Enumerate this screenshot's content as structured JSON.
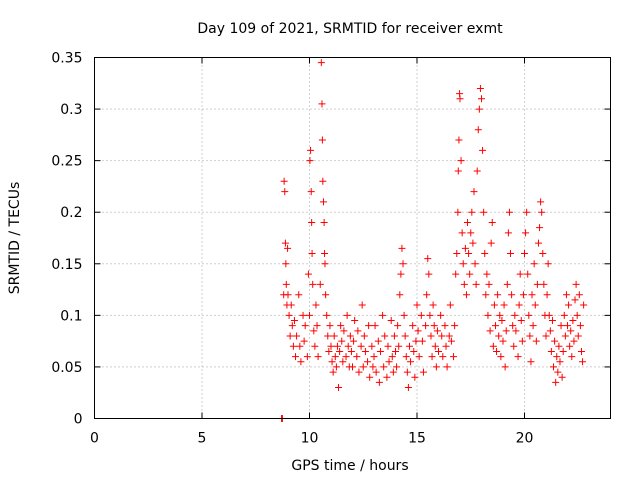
{
  "chart_data": {
    "type": "scatter",
    "title": "Day 109 of 2021, SRMTID for receiver exmt",
    "xlabel": "GPS time / hours",
    "ylabel": "SRMTID / TECUs",
    "xlim": [
      0,
      24
    ],
    "ylim": [
      0,
      0.35
    ],
    "xticks": [
      0,
      5,
      10,
      15,
      20
    ],
    "xtick_labels": [
      "0",
      "5",
      "10",
      "15",
      "20"
    ],
    "yticks": [
      0,
      0.05,
      0.1,
      0.15,
      0.2,
      0.25,
      0.3,
      0.35
    ],
    "ytick_labels": [
      "0",
      "0.05",
      "0.1",
      "0.15",
      "0.2",
      "0.25",
      "0.3",
      "0.35"
    ],
    "grid": true,
    "marker": "plus",
    "color": "#ff0000",
    "series": [
      {
        "name": "SRMTID",
        "points": [
          [
            8.7,
            0.0
          ],
          [
            8.72,
            0.0
          ],
          [
            8.74,
            0.0
          ],
          [
            8.8,
            0.12
          ],
          [
            8.82,
            0.23
          ],
          [
            8.85,
            0.22
          ],
          [
            8.88,
            0.17
          ],
          [
            8.9,
            0.15
          ],
          [
            8.92,
            0.13
          ],
          [
            8.95,
            0.11
          ],
          [
            8.98,
            0.165
          ],
          [
            9.0,
            0.12
          ],
          [
            9.05,
            0.1
          ],
          [
            9.1,
            0.08
          ],
          [
            9.15,
            0.11
          ],
          [
            9.2,
            0.09
          ],
          [
            9.25,
            0.07
          ],
          [
            9.3,
            0.095
          ],
          [
            9.35,
            0.06
          ],
          [
            9.4,
            0.08
          ],
          [
            9.5,
            0.12
          ],
          [
            9.55,
            0.07
          ],
          [
            9.6,
            0.055
          ],
          [
            9.7,
            0.1
          ],
          [
            9.75,
            0.075
          ],
          [
            9.8,
            0.09
          ],
          [
            9.9,
            0.06
          ],
          [
            9.95,
            0.14
          ],
          [
            10.0,
            0.1
          ],
          [
            10.02,
            0.25
          ],
          [
            10.05,
            0.26
          ],
          [
            10.08,
            0.22
          ],
          [
            10.1,
            0.19
          ],
          [
            10.12,
            0.16
          ],
          [
            10.15,
            0.13
          ],
          [
            10.2,
            0.085
          ],
          [
            10.25,
            0.07
          ],
          [
            10.3,
            0.11
          ],
          [
            10.35,
            0.09
          ],
          [
            10.4,
            0.06
          ],
          [
            10.5,
            0.13
          ],
          [
            10.55,
            0.345
          ],
          [
            10.58,
            0.305
          ],
          [
            10.6,
            0.27
          ],
          [
            10.62,
            0.23
          ],
          [
            10.65,
            0.21
          ],
          [
            10.68,
            0.19
          ],
          [
            10.7,
            0.16
          ],
          [
            10.72,
            0.15
          ],
          [
            10.75,
            0.12
          ],
          [
            10.8,
            0.1
          ],
          [
            10.85,
            0.08
          ],
          [
            10.9,
            0.065
          ],
          [
            10.95,
            0.09
          ],
          [
            11.0,
            0.07
          ],
          [
            11.05,
            0.055
          ],
          [
            11.1,
            0.045
          ],
          [
            11.15,
            0.08
          ],
          [
            11.2,
            0.06
          ],
          [
            11.25,
            0.05
          ],
          [
            11.3,
            0.07
          ],
          [
            11.35,
            0.03
          ],
          [
            11.4,
            0.065
          ],
          [
            11.45,
            0.09
          ],
          [
            11.5,
            0.075
          ],
          [
            11.55,
            0.055
          ],
          [
            11.6,
            0.085
          ],
          [
            11.7,
            0.06
          ],
          [
            11.75,
            0.1
          ],
          [
            11.8,
            0.07
          ],
          [
            11.85,
            0.05
          ],
          [
            11.9,
            0.08
          ],
          [
            11.95,
            0.065
          ],
          [
            12.0,
            0.05
          ],
          [
            12.05,
            0.075
          ],
          [
            12.1,
            0.095
          ],
          [
            12.2,
            0.06
          ],
          [
            12.25,
            0.085
          ],
          [
            12.3,
            0.045
          ],
          [
            12.4,
            0.07
          ],
          [
            12.45,
            0.11
          ],
          [
            12.5,
            0.05
          ],
          [
            12.55,
            0.08
          ],
          [
            12.6,
            0.065
          ],
          [
            12.7,
            0.055
          ],
          [
            12.75,
            0.09
          ],
          [
            12.8,
            0.04
          ],
          [
            12.9,
            0.07
          ],
          [
            12.95,
            0.05
          ],
          [
            13.0,
            0.06
          ],
          [
            13.05,
            0.09
          ],
          [
            13.1,
            0.045
          ],
          [
            13.2,
            0.075
          ],
          [
            13.25,
            0.035
          ],
          [
            13.3,
            0.065
          ],
          [
            13.4,
            0.1
          ],
          [
            13.45,
            0.05
          ],
          [
            13.5,
            0.08
          ],
          [
            13.6,
            0.04
          ],
          [
            13.65,
            0.07
          ],
          [
            13.7,
            0.055
          ],
          [
            13.8,
            0.095
          ],
          [
            13.85,
            0.06
          ],
          [
            13.9,
            0.045
          ],
          [
            13.95,
            0.08
          ],
          [
            14.0,
            0.065
          ],
          [
            14.05,
            0.05
          ],
          [
            14.1,
            0.09
          ],
          [
            14.15,
            0.07
          ],
          [
            14.2,
            0.12
          ],
          [
            14.25,
            0.14
          ],
          [
            14.3,
            0.165
          ],
          [
            14.35,
            0.15
          ],
          [
            14.4,
            0.1
          ],
          [
            14.45,
            0.08
          ],
          [
            14.5,
            0.06
          ],
          [
            14.55,
            0.045
          ],
          [
            14.6,
            0.03
          ],
          [
            14.65,
            0.07
          ],
          [
            14.7,
            0.055
          ],
          [
            14.8,
            0.09
          ],
          [
            14.85,
            0.065
          ],
          [
            14.9,
            0.04
          ],
          [
            14.95,
            0.075
          ],
          [
            15.0,
            0.11
          ],
          [
            15.05,
            0.085
          ],
          [
            15.1,
            0.06
          ],
          [
            15.2,
            0.1
          ],
          [
            15.25,
            0.075
          ],
          [
            15.3,
            0.045
          ],
          [
            15.4,
            0.09
          ],
          [
            15.45,
            0.12
          ],
          [
            15.5,
            0.155
          ],
          [
            15.55,
            0.14
          ],
          [
            15.6,
            0.1
          ],
          [
            15.65,
            0.08
          ],
          [
            15.7,
            0.06
          ],
          [
            15.75,
            0.11
          ],
          [
            15.8,
            0.09
          ],
          [
            15.85,
            0.07
          ],
          [
            15.9,
            0.05
          ],
          [
            15.95,
            0.085
          ],
          [
            16.0,
            0.065
          ],
          [
            16.1,
            0.1
          ],
          [
            16.15,
            0.08
          ],
          [
            16.2,
            0.06
          ],
          [
            16.3,
            0.09
          ],
          [
            16.35,
            0.07
          ],
          [
            16.4,
            0.05
          ],
          [
            16.5,
            0.08
          ],
          [
            16.55,
            0.11
          ],
          [
            16.6,
            0.075
          ],
          [
            16.7,
            0.06
          ],
          [
            16.75,
            0.09
          ],
          [
            16.8,
            0.14
          ],
          [
            16.85,
            0.16
          ],
          [
            16.9,
            0.2
          ],
          [
            16.92,
            0.24
          ],
          [
            16.95,
            0.27
          ],
          [
            16.98,
            0.315
          ],
          [
            17.0,
            0.31
          ],
          [
            17.05,
            0.25
          ],
          [
            17.1,
            0.18
          ],
          [
            17.15,
            0.15
          ],
          [
            17.2,
            0.13
          ],
          [
            17.25,
            0.165
          ],
          [
            17.3,
            0.12
          ],
          [
            17.35,
            0.19
          ],
          [
            17.4,
            0.16
          ],
          [
            17.45,
            0.14
          ],
          [
            17.5,
            0.18
          ],
          [
            17.55,
            0.2
          ],
          [
            17.6,
            0.17
          ],
          [
            17.65,
            0.22
          ],
          [
            17.7,
            0.15
          ],
          [
            17.75,
            0.13
          ],
          [
            17.8,
            0.24
          ],
          [
            17.85,
            0.28
          ],
          [
            17.9,
            0.3
          ],
          [
            17.95,
            0.32
          ],
          [
            18.0,
            0.31
          ],
          [
            18.05,
            0.26
          ],
          [
            18.1,
            0.2
          ],
          [
            18.15,
            0.16
          ],
          [
            18.2,
            0.12
          ],
          [
            18.25,
            0.14
          ],
          [
            18.3,
            0.1
          ],
          [
            18.35,
            0.13
          ],
          [
            18.4,
            0.085
          ],
          [
            18.45,
            0.17
          ],
          [
            18.5,
            0.19
          ],
          [
            18.55,
            0.07
          ],
          [
            18.6,
            0.11
          ],
          [
            18.65,
            0.09
          ],
          [
            18.7,
            0.065
          ],
          [
            18.75,
            0.12
          ],
          [
            18.8,
            0.08
          ],
          [
            18.85,
            0.1
          ],
          [
            18.9,
            0.06
          ],
          [
            18.95,
            0.095
          ],
          [
            19.0,
            0.075
          ],
          [
            19.05,
            0.11
          ],
          [
            19.1,
            0.05
          ],
          [
            19.15,
            0.085
          ],
          [
            19.2,
            0.13
          ],
          [
            19.25,
            0.18
          ],
          [
            19.3,
            0.2
          ],
          [
            19.35,
            0.16
          ],
          [
            19.4,
            0.12
          ],
          [
            19.45,
            0.09
          ],
          [
            19.5,
            0.07
          ],
          [
            19.55,
            0.1
          ],
          [
            19.6,
            0.085
          ],
          [
            19.7,
            0.06
          ],
          [
            19.75,
            0.11
          ],
          [
            19.8,
            0.14
          ],
          [
            19.85,
            0.095
          ],
          [
            19.9,
            0.075
          ],
          [
            19.95,
            0.12
          ],
          [
            20.0,
            0.16
          ],
          [
            20.05,
            0.18
          ],
          [
            20.1,
            0.2
          ],
          [
            20.15,
            0.14
          ],
          [
            20.2,
            0.1
          ],
          [
            20.25,
            0.08
          ],
          [
            20.3,
            0.055
          ],
          [
            20.35,
            0.12
          ],
          [
            20.4,
            0.09
          ],
          [
            20.45,
            0.15
          ],
          [
            20.5,
            0.11
          ],
          [
            20.55,
            0.075
          ],
          [
            20.6,
            0.13
          ],
          [
            20.65,
            0.17
          ],
          [
            20.7,
            0.185
          ],
          [
            20.75,
            0.21
          ],
          [
            20.8,
            0.2
          ],
          [
            20.85,
            0.16
          ],
          [
            20.9,
            0.13
          ],
          [
            20.95,
            0.1
          ],
          [
            21.0,
            0.08
          ],
          [
            21.05,
            0.12
          ],
          [
            21.1,
            0.15
          ],
          [
            21.15,
            0.1
          ],
          [
            21.2,
            0.085
          ],
          [
            21.25,
            0.065
          ],
          [
            21.3,
            0.095
          ],
          [
            21.35,
            0.05
          ],
          [
            21.4,
            0.075
          ],
          [
            21.45,
            0.035
          ],
          [
            21.5,
            0.06
          ],
          [
            21.55,
            0.045
          ],
          [
            21.6,
            0.07
          ],
          [
            21.65,
            0.055
          ],
          [
            21.7,
            0.09
          ],
          [
            21.75,
            0.04
          ],
          [
            21.8,
            0.065
          ],
          [
            21.85,
            0.1
          ],
          [
            21.9,
            0.08
          ],
          [
            21.95,
            0.12
          ],
          [
            22.0,
            0.09
          ],
          [
            22.05,
            0.11
          ],
          [
            22.1,
            0.07
          ],
          [
            22.15,
            0.085
          ],
          [
            22.2,
            0.06
          ],
          [
            22.25,
            0.095
          ],
          [
            22.3,
            0.075
          ],
          [
            22.35,
            0.115
          ],
          [
            22.4,
            0.13
          ],
          [
            22.45,
            0.1
          ],
          [
            22.5,
            0.08
          ],
          [
            22.55,
            0.12
          ],
          [
            22.6,
            0.09
          ],
          [
            22.65,
            0.065
          ],
          [
            22.7,
            0.055
          ],
          [
            22.75,
            0.11
          ]
        ]
      }
    ]
  }
}
